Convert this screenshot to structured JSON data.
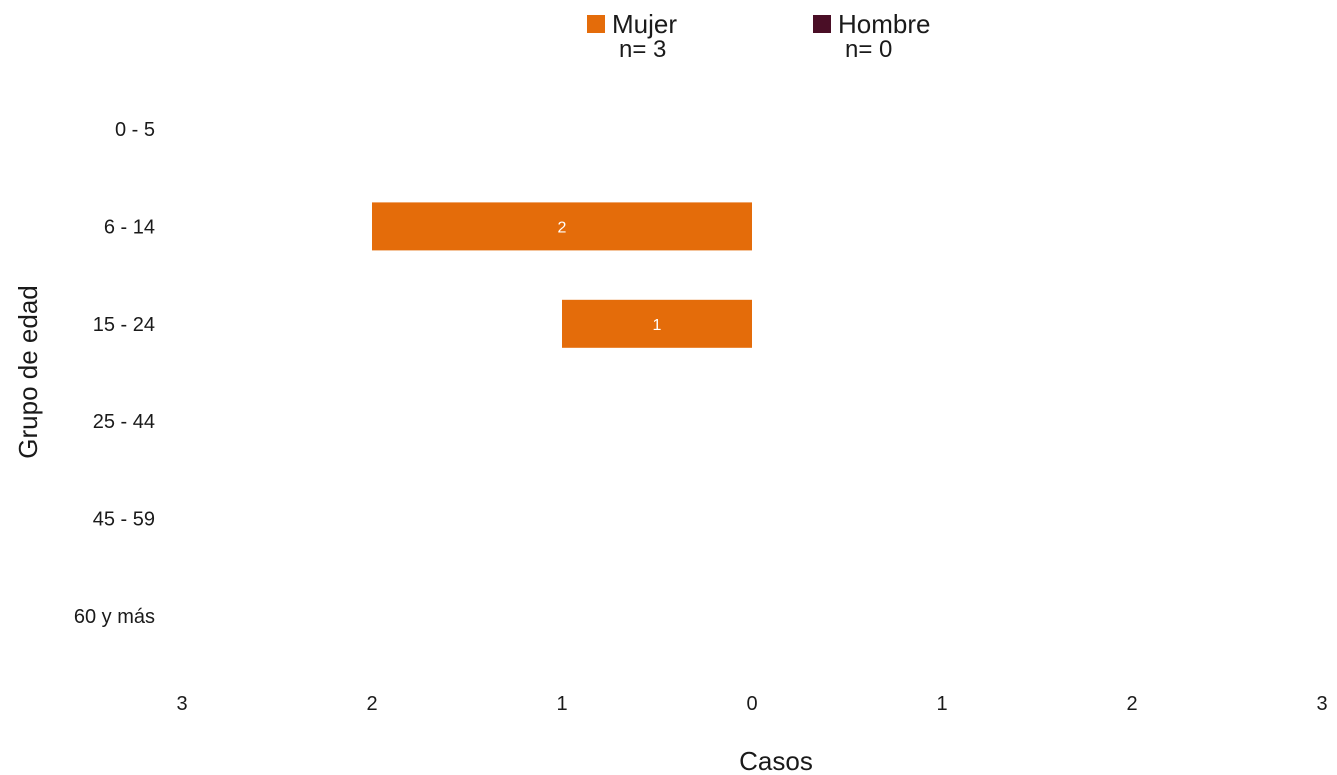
{
  "chart_data": {
    "type": "bar",
    "orientation": "horizontal",
    "layout": "population-pyramid",
    "categories": [
      "0 - 5",
      "6 - 14",
      "15 - 24",
      "25 - 44",
      "45 - 59",
      "60 y más"
    ],
    "series": [
      {
        "name": "Mujer",
        "n_label": "n= 3",
        "side": "left",
        "color": "#E46C0A",
        "values": [
          0,
          2,
          1,
          0,
          0,
          0
        ]
      },
      {
        "name": "Hombre",
        "n_label": "n= 0",
        "side": "right",
        "color": "#4A0E26",
        "values": [
          0,
          0,
          0,
          0,
          0,
          0
        ]
      }
    ],
    "xlabel": "Casos",
    "ylabel": "Grupo de edad",
    "xlim": [
      -3,
      3
    ],
    "x_ticks": [
      -3,
      -2,
      -1,
      0,
      1,
      2,
      3
    ],
    "x_tick_labels": [
      "3",
      "2",
      "1",
      "0",
      "1",
      "2",
      "3"
    ],
    "grid": false,
    "legend_position": "top"
  }
}
